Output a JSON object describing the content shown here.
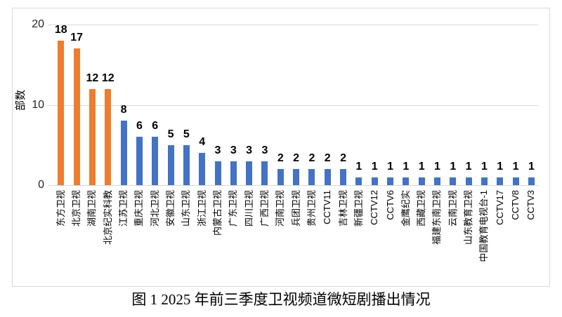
{
  "figure": {
    "caption": "图 1 2025 年前三季度卫视频道微短剧播出情况"
  },
  "chart_data": {
    "type": "bar",
    "title": "图 1 2025 年前三季度卫视频道微短剧播出情况",
    "ylabel": "部数",
    "xlabel": "",
    "ylim": [
      0,
      20
    ],
    "yticks": [
      0,
      10,
      20
    ],
    "grid": true,
    "legend": false,
    "categories": [
      "东方卫视",
      "北京卫视",
      "湖南卫视",
      "北京纪实科教",
      "江苏卫视",
      "重庆卫视",
      "河北卫视",
      "安徽卫视",
      "山东卫视",
      "浙江卫视",
      "内蒙古卫视",
      "广东卫视",
      "四川卫视",
      "广西卫视",
      "河南卫视",
      "兵团卫视",
      "贵州卫视",
      "CCTV11",
      "吉林卫视",
      "新疆卫视",
      "CCTV12",
      "CCTV6",
      "金鹰纪实",
      "西藏卫视",
      "福建东南卫视",
      "云南卫视",
      "山东教育卫视",
      "中国教育电视台-1",
      "CCTV17",
      "CCTV8",
      "CCTV3"
    ],
    "values": [
      18,
      17,
      12,
      12,
      8,
      6,
      6,
      5,
      5,
      4,
      3,
      3,
      3,
      3,
      2,
      2,
      2,
      2,
      2,
      1,
      1,
      1,
      1,
      1,
      1,
      1,
      1,
      1,
      1,
      1,
      1
    ],
    "highlight_first_n": 4,
    "colors": {
      "highlight_bar": "#ED7D31",
      "default_bar": "#4472C4",
      "gridline": "#D9D9D9",
      "axis_text": "#262626",
      "value_label": "#000000"
    }
  }
}
